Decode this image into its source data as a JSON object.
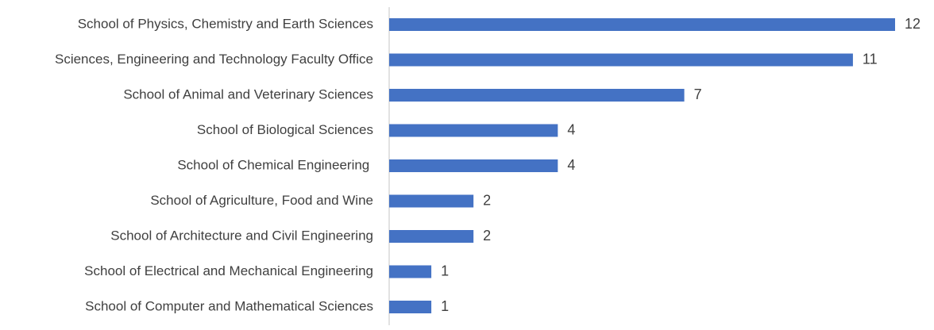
{
  "chart_data": {
    "type": "bar",
    "orientation": "horizontal",
    "categories": [
      "School of Physics, Chemistry and Earth Sciences",
      "Sciences, Engineering and Technology Faculty Office",
      "School of Animal and Veterinary Sciences",
      "School of Biological Sciences",
      "School of Chemical Engineering ",
      "School of Agriculture, Food and Wine",
      "School of Architecture and Civil Engineering",
      "School of Electrical and Mechanical Engineering",
      "School of Computer and Mathematical Sciences"
    ],
    "values": [
      12,
      11,
      7,
      4,
      4,
      2,
      2,
      1,
      1
    ],
    "color": "#4472c4",
    "grid": false
  }
}
